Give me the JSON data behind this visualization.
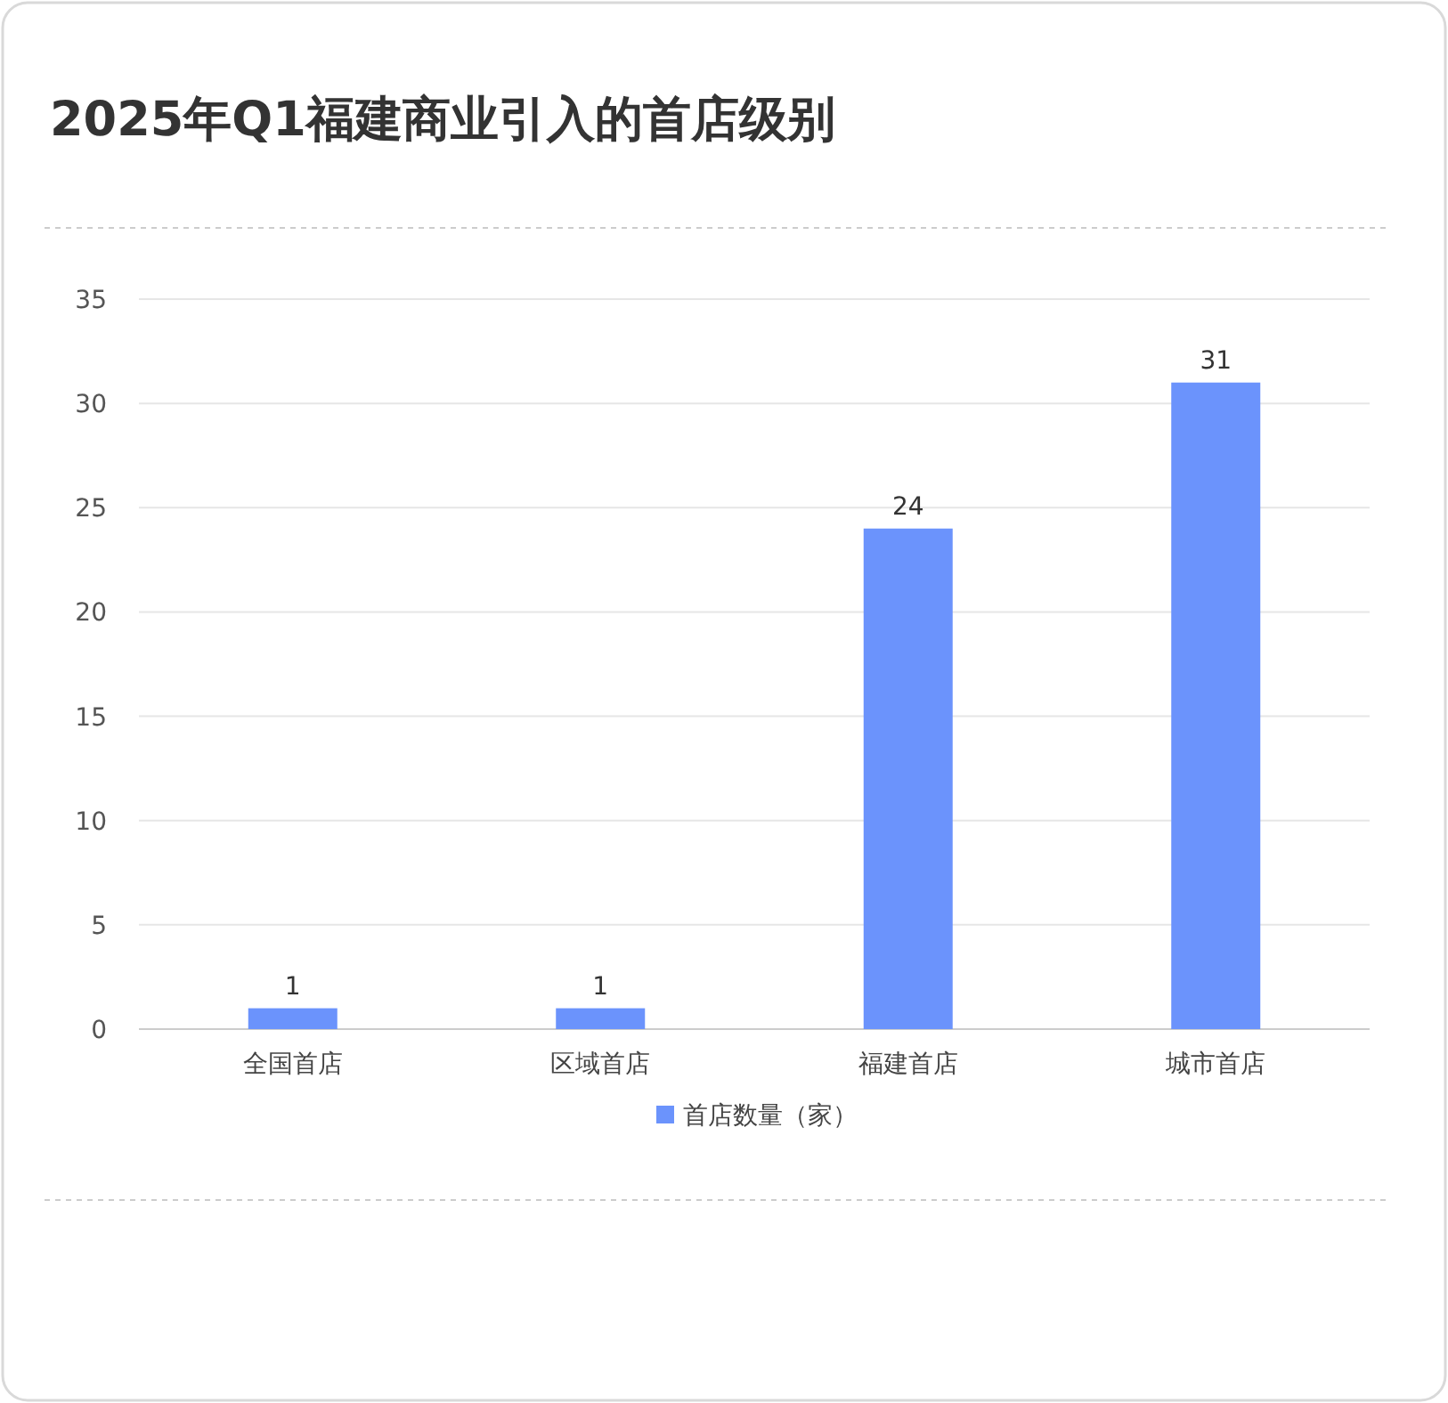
{
  "chart_data": {
    "type": "bar",
    "title": "2025年Q1福建商业引入的首店级别",
    "categories": [
      "全国首店",
      "区域首店",
      "福建首店",
      "城市首店"
    ],
    "series": [
      {
        "name": "首店数量（家）",
        "color": "#6b93fc",
        "values": [
          1,
          1,
          24,
          31
        ]
      }
    ],
    "ylim": [
      0,
      35
    ],
    "yticks": [
      0,
      5,
      10,
      15,
      20,
      25,
      30,
      35
    ],
    "grid": "y",
    "data_labels": true,
    "legend": "bottom"
  }
}
